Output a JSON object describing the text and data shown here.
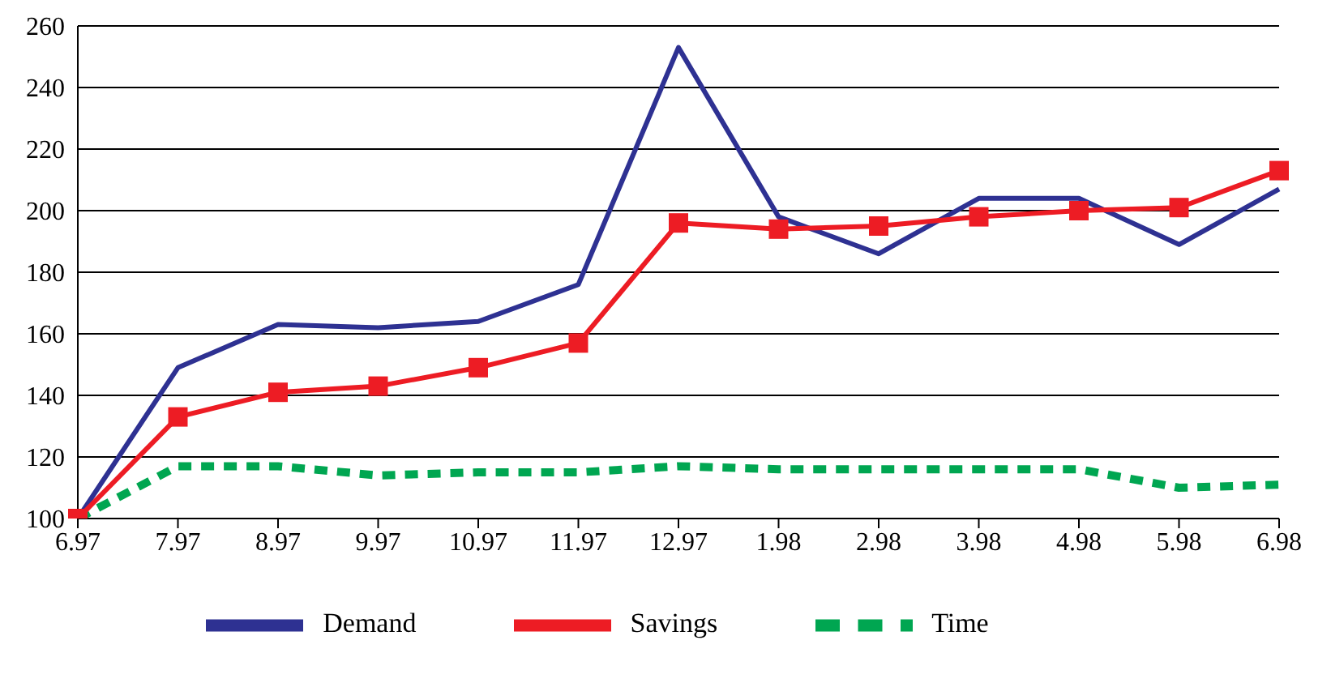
{
  "chart_data": {
    "type": "line",
    "categories": [
      "6.97",
      "7.97",
      "8.97",
      "9.97",
      "10.97",
      "11.97",
      "12.97",
      "1.98",
      "2.98",
      "3.98",
      "4.98",
      "5.98",
      "6.98"
    ],
    "series": [
      {
        "name": "Demand",
        "color": "#2e3192",
        "marker": "none",
        "line_style": "solid",
        "values": [
          100,
          149,
          163,
          162,
          164,
          176,
          253,
          198,
          186,
          204,
          204,
          189,
          207
        ]
      },
      {
        "name": "Time",
        "color": "#00a651",
        "marker": "none",
        "line_style": "dashed",
        "values": [
          100,
          117,
          117,
          114,
          115,
          115,
          117,
          116,
          116,
          116,
          116,
          110,
          111
        ]
      },
      {
        "name": "Savings",
        "color": "#ed1c24",
        "marker": "square",
        "line_style": "solid",
        "values": [
          100,
          133,
          141,
          143,
          149,
          157,
          196,
          194,
          195,
          198,
          200,
          201,
          213
        ]
      }
    ],
    "ylim": [
      100,
      260
    ],
    "yticks": [
      100,
      120,
      140,
      160,
      180,
      200,
      220,
      240,
      260
    ],
    "grid": "y",
    "legend": "bottom"
  }
}
